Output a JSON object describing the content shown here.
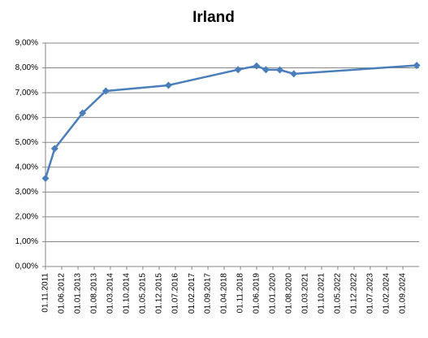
{
  "chart_data": {
    "type": "line",
    "title": "Irland",
    "x": [
      "2011-11-01",
      "2012-03-01",
      "2013-03-01",
      "2014-01-01",
      "2016-04-01",
      "2018-10-01",
      "2019-06-01",
      "2019-10-01",
      "2020-04-01",
      "2020-10-01",
      "2025-03-01"
    ],
    "series": [
      {
        "name": "Irland",
        "color": "#4a7ebb",
        "values": [
          3.55,
          4.75,
          6.18,
          7.07,
          7.3,
          7.93,
          8.08,
          7.93,
          7.92,
          7.76,
          8.1
        ]
      }
    ],
    "xlim": [
      "2011-11-01",
      "2025-04-01"
    ],
    "xticks": [
      "2011-11-01",
      "2012-06-01",
      "2013-01-01",
      "2013-08-01",
      "2014-03-01",
      "2014-10-01",
      "2015-05-01",
      "2015-12-01",
      "2016-07-01",
      "2017-02-01",
      "2017-09-01",
      "2018-04-01",
      "2018-11-01",
      "2019-06-01",
      "2020-01-01",
      "2020-08-01",
      "2021-03-01",
      "2021-10-01",
      "2022-05-01",
      "2022-12-01",
      "2023-07-01",
      "2024-02-01",
      "2024-09-01"
    ],
    "xtick_labels": [
      "01.11.2011",
      "01.06.2012",
      "01.01.2013",
      "01.08.2013",
      "01.03.2014",
      "01.10.2014",
      "01.05.2015",
      "01.12.2015",
      "01.07.2016",
      "01.02.2017",
      "01.09.2017",
      "01.04.2018",
      "01.11.2018",
      "01.06.2019",
      "01.01.2020",
      "01.08.2020",
      "01.03.2021",
      "01.10.2021",
      "01.05.2022",
      "01.12.2022",
      "01.07.2023",
      "01.02.2024",
      "01.09.2024"
    ],
    "ylim": [
      0,
      9
    ],
    "yticks": [
      {
        "value": 0,
        "label": "0,00%"
      },
      {
        "value": 1,
        "label": "1,00%"
      },
      {
        "value": 2,
        "label": "2,00%"
      },
      {
        "value": 3,
        "label": "3,00%"
      },
      {
        "value": 4,
        "label": "4,00%"
      },
      {
        "value": 5,
        "label": "5,00%"
      },
      {
        "value": 6,
        "label": "6,00%"
      },
      {
        "value": 7,
        "label": "7,00%"
      },
      {
        "value": 8,
        "label": "8,00%"
      },
      {
        "value": 9,
        "label": "9,00%"
      }
    ],
    "grid": true
  }
}
